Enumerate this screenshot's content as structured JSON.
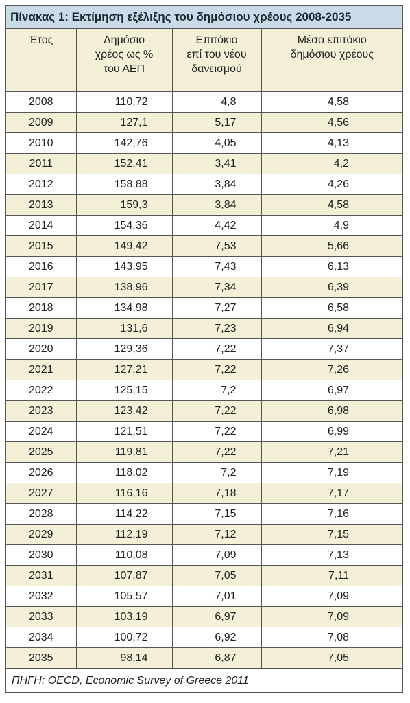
{
  "header": {
    "title": "Πίνακας 1: Εκτίμηση εξέλιξης του δημόσιου χρέους 2008-2035"
  },
  "table": {
    "columns": [
      [
        "Έτος"
      ],
      [
        "Δημόσιο",
        "χρέος ως %",
        "του ΑΕΠ"
      ],
      [
        "Επιτόκιο",
        "επί του νέου",
        "δανεισμού"
      ],
      [
        "Μέσο επιτόκιο",
        "δημόσιου χρέους"
      ]
    ],
    "rows": [
      [
        "2008",
        "110,72",
        "4,8",
        "4,58"
      ],
      [
        "2009",
        "127,1",
        "5,17",
        "4,56"
      ],
      [
        "2010",
        "142,76",
        "4,05",
        "4,13"
      ],
      [
        "2011",
        "152,41",
        "3,41",
        "4,2"
      ],
      [
        "2012",
        "158,88",
        "3,84",
        "4,26"
      ],
      [
        "2013",
        "159,3",
        "3,84",
        "4,58"
      ],
      [
        "2014",
        "154,36",
        "4,42",
        "4,9"
      ],
      [
        "2015",
        "149,42",
        "7,53",
        "5,66"
      ],
      [
        "2016",
        "143,95",
        "7,43",
        "6,13"
      ],
      [
        "2017",
        "138,96",
        "7,34",
        "6,39"
      ],
      [
        "2018",
        "134,98",
        "7,27",
        "6,58"
      ],
      [
        "2019",
        "131,6",
        "7,23",
        "6,94"
      ],
      [
        "2020",
        "129,36",
        "7,22",
        "7,37"
      ],
      [
        "2021",
        "127,21",
        "7,22",
        "7,26"
      ],
      [
        "2022",
        "125,15",
        "7,2",
        "6,97"
      ],
      [
        "2023",
        "123,42",
        "7,22",
        "6,98"
      ],
      [
        "2024",
        "121,51",
        "7,22",
        "6,99"
      ],
      [
        "2025",
        "119,81",
        "7,22",
        "7,21"
      ],
      [
        "2026",
        "118,02",
        "7,2",
        "7,19"
      ],
      [
        "2027",
        "116,16",
        "7,18",
        "7,17"
      ],
      [
        "2028",
        "114,22",
        "7,15",
        "7,16"
      ],
      [
        "2029",
        "112,19",
        "7,12",
        "7,15"
      ],
      [
        "2030",
        "110,08",
        "7,09",
        "7,13"
      ],
      [
        "2031",
        "107,87",
        "7,05",
        "7,11"
      ],
      [
        "2032",
        "105,57",
        "7,01",
        "7,09"
      ],
      [
        "2033",
        "103,19",
        "6,97",
        "7,09"
      ],
      [
        "2034",
        "100,72",
        "6,92",
        "7,08"
      ],
      [
        "2035",
        "98,14",
        "6,87",
        "7,05"
      ]
    ]
  },
  "footer": {
    "source": "ΠΗΓΗ: OECD, Economic Survey of Greece 2011"
  }
}
